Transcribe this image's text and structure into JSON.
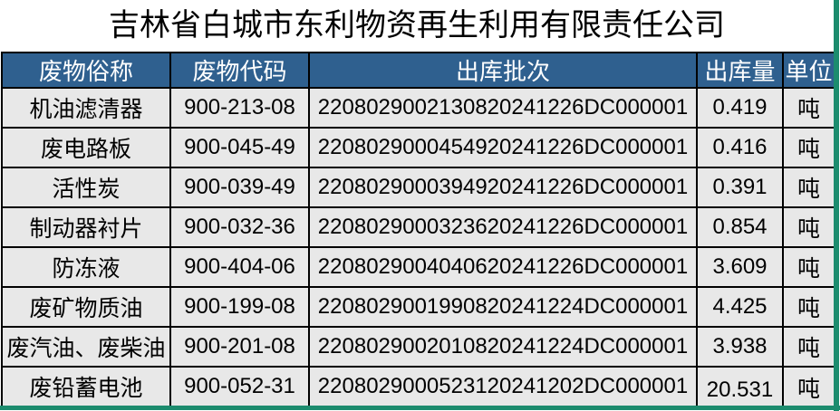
{
  "title": "吉林省白城市东利物资再生利用有限责任公司",
  "table": {
    "columns": [
      "废物俗称",
      "废物代码",
      "出库批次",
      "出库量",
      "单位"
    ],
    "rows": [
      {
        "name": "机油滤清器",
        "code": "900-213-08",
        "batch": "2208029002130820241226DC000001",
        "amount": "0.419",
        "unit": "吨"
      },
      {
        "name": "废电路板",
        "code": "900-045-49",
        "batch": "2208029000454920241226DC000001",
        "amount": "0.416",
        "unit": "吨"
      },
      {
        "name": "活性炭",
        "code": "900-039-49",
        "batch": "2208029000394920241226DC000001",
        "amount": "0.391",
        "unit": "吨"
      },
      {
        "name": "制动器衬片",
        "code": "900-032-36",
        "batch": "2208029000323620241226DC000001",
        "amount": "0.854",
        "unit": "吨"
      },
      {
        "name": "防冻液",
        "code": "900-404-06",
        "batch": "2208029004040620241226DC000001",
        "amount": "3.609",
        "unit": "吨"
      },
      {
        "name": "废矿物质油",
        "code": "900-199-08",
        "batch": "2208029001990820241224DC000001",
        "amount": "4.425",
        "unit": "吨"
      },
      {
        "name": "废汽油、废柴油",
        "code": "900-201-08",
        "batch": "2208029002010820241224DC000001",
        "amount": "3.938",
        "unit": "吨"
      },
      {
        "name": "废铅蓄电池",
        "code": "900-052-31",
        "batch": "2208029000523120241202DC000001",
        "amount": "20.531",
        "unit": "吨"
      }
    ]
  },
  "colors": {
    "header_bg": "#2F608F",
    "header_text": "#FFFFFF",
    "row_bg": "#E8E8E8",
    "border": "#000000",
    "accent_green": "#1C8C6E",
    "title_text": "#000000"
  }
}
